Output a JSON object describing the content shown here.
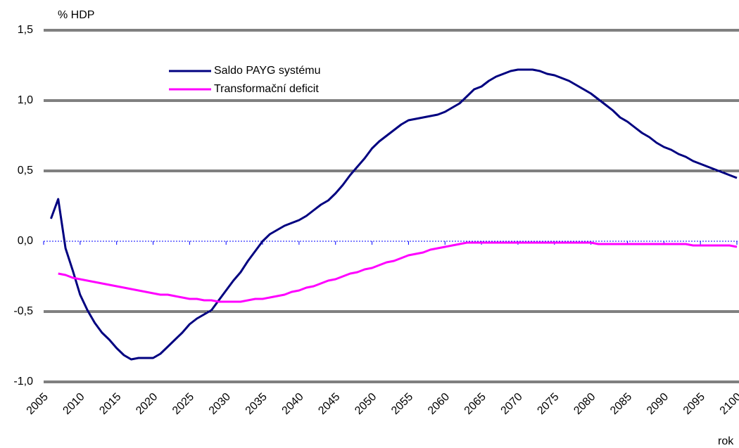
{
  "chart_data": {
    "type": "line",
    "y_axis_label": "% HDP",
    "x_axis_label": "rok",
    "x": [
      2006,
      2007,
      2008,
      2009,
      2010,
      2011,
      2012,
      2013,
      2014,
      2015,
      2016,
      2017,
      2018,
      2019,
      2020,
      2021,
      2022,
      2023,
      2024,
      2025,
      2026,
      2027,
      2028,
      2029,
      2030,
      2031,
      2032,
      2033,
      2034,
      2035,
      2036,
      2037,
      2038,
      2039,
      2040,
      2041,
      2042,
      2043,
      2044,
      2045,
      2046,
      2047,
      2048,
      2049,
      2050,
      2051,
      2052,
      2053,
      2054,
      2055,
      2056,
      2057,
      2058,
      2059,
      2060,
      2061,
      2062,
      2063,
      2064,
      2065,
      2066,
      2067,
      2068,
      2069,
      2070,
      2071,
      2072,
      2073,
      2074,
      2075,
      2076,
      2077,
      2078,
      2079,
      2080,
      2081,
      2082,
      2083,
      2084,
      2085,
      2086,
      2087,
      2088,
      2089,
      2090,
      2091,
      2092,
      2093,
      2094,
      2095,
      2096,
      2097,
      2098,
      2099,
      2100
    ],
    "series": [
      {
        "name": "Saldo PAYG systému",
        "color": "#000080",
        "values": [
          0.16,
          0.3,
          -0.05,
          -0.21,
          -0.38,
          -0.49,
          -0.58,
          -0.65,
          -0.7,
          -0.76,
          -0.81,
          -0.84,
          -0.83,
          -0.83,
          -0.83,
          -0.8,
          -0.75,
          -0.7,
          -0.65,
          -0.59,
          -0.55,
          -0.52,
          -0.49,
          -0.42,
          -0.35,
          -0.28,
          -0.22,
          -0.14,
          -0.07,
          0.0,
          0.05,
          0.08,
          0.11,
          0.13,
          0.15,
          0.18,
          0.22,
          0.26,
          0.29,
          0.34,
          0.4,
          0.47,
          0.53,
          0.59,
          0.66,
          0.71,
          0.75,
          0.79,
          0.83,
          0.86,
          0.87,
          0.88,
          0.89,
          0.9,
          0.92,
          0.95,
          0.98,
          1.03,
          1.08,
          1.1,
          1.14,
          1.17,
          1.19,
          1.21,
          1.22,
          1.22,
          1.22,
          1.21,
          1.19,
          1.18,
          1.16,
          1.14,
          1.11,
          1.08,
          1.05,
          1.01,
          0.97,
          0.93,
          0.88,
          0.85,
          0.81,
          0.77,
          0.74,
          0.7,
          0.67,
          0.65,
          0.62,
          0.6,
          0.57,
          0.55,
          0.53,
          0.51,
          0.49,
          0.47,
          0.45
        ]
      },
      {
        "name": "Transformační deficit",
        "color": "#ff00ff",
        "values": [
          null,
          -0.23,
          -0.24,
          -0.26,
          -0.27,
          -0.28,
          -0.29,
          -0.3,
          -0.31,
          -0.32,
          -0.33,
          -0.34,
          -0.35,
          -0.36,
          -0.37,
          -0.38,
          -0.38,
          -0.39,
          -0.4,
          -0.41,
          -0.41,
          -0.42,
          -0.42,
          -0.43,
          -0.43,
          -0.43,
          -0.43,
          -0.42,
          -0.41,
          -0.41,
          -0.4,
          -0.39,
          -0.38,
          -0.36,
          -0.35,
          -0.33,
          -0.32,
          -0.3,
          -0.28,
          -0.27,
          -0.25,
          -0.23,
          -0.22,
          -0.2,
          -0.19,
          -0.17,
          -0.15,
          -0.14,
          -0.12,
          -0.1,
          -0.09,
          -0.08,
          -0.06,
          -0.05,
          -0.04,
          -0.03,
          -0.02,
          -0.01,
          -0.01,
          -0.01,
          -0.01,
          -0.01,
          -0.01,
          -0.01,
          -0.01,
          -0.01,
          -0.01,
          -0.01,
          -0.01,
          -0.01,
          -0.01,
          -0.01,
          -0.01,
          -0.01,
          -0.01,
          -0.02,
          -0.02,
          -0.02,
          -0.02,
          -0.02,
          -0.02,
          -0.02,
          -0.02,
          -0.02,
          -0.02,
          -0.02,
          -0.02,
          -0.02,
          -0.03,
          -0.03,
          -0.03,
          -0.03,
          -0.03,
          -0.03,
          -0.04
        ]
      }
    ],
    "xlim": [
      2005,
      2100
    ],
    "xticks": [
      2005,
      2010,
      2015,
      2020,
      2025,
      2030,
      2035,
      2040,
      2045,
      2050,
      2055,
      2060,
      2065,
      2070,
      2075,
      2080,
      2085,
      2090,
      2095,
      2100
    ],
    "ylim": [
      -1.0,
      1.5
    ],
    "yticks": [
      {
        "value": -1.0,
        "label": "-1,0"
      },
      {
        "value": -0.5,
        "label": "-0,5"
      },
      {
        "value": 0.0,
        "label": "0,0"
      },
      {
        "value": 0.5,
        "label": "0,5"
      },
      {
        "value": 1.0,
        "label": "1,0"
      },
      {
        "value": 1.5,
        "label": "1,5"
      }
    ],
    "grid": true,
    "legend": "top-left"
  }
}
